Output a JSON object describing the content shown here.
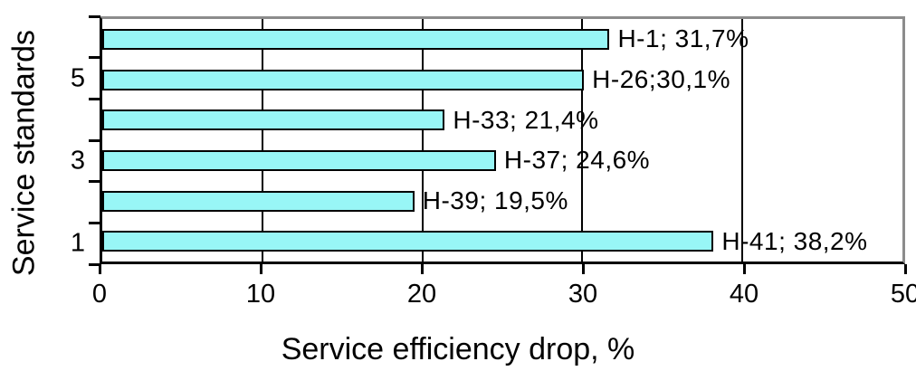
{
  "chart_data": {
    "type": "bar",
    "orientation": "horizontal",
    "xlabel": "Service efficiency drop, %",
    "ylabel": "Service standards",
    "xlim": [
      0,
      50
    ],
    "x_ticks": [
      0,
      10,
      20,
      30,
      40,
      50
    ],
    "y_tick_labels": [
      "5",
      "3",
      "1"
    ],
    "grid": "vertical-black-lines, top-right-frame-gray",
    "legend": "none",
    "bars": [
      {
        "name": "H-1",
        "value": 31.7,
        "label": "H-1; 31,7%"
      },
      {
        "name": "H-26",
        "value": 30.1,
        "label": "H-26;30,1%"
      },
      {
        "name": "H-33",
        "value": 21.4,
        "label": "H-33; 21,4%"
      },
      {
        "name": "H-37",
        "value": 24.6,
        "label": "H-37; 24,6%"
      },
      {
        "name": "H-39",
        "value": 19.5,
        "label": "H-39; 19,5%"
      },
      {
        "name": "H-41",
        "value": 38.2,
        "label": "H-41; 38,2%"
      }
    ],
    "colors": {
      "bar_fill": "#98F6F6",
      "bar_border": "#000000",
      "gridline": "#000000",
      "axis": "#000000",
      "frame": "#8C8C8C",
      "background": "#FFFFFF",
      "text": "#000000"
    }
  }
}
